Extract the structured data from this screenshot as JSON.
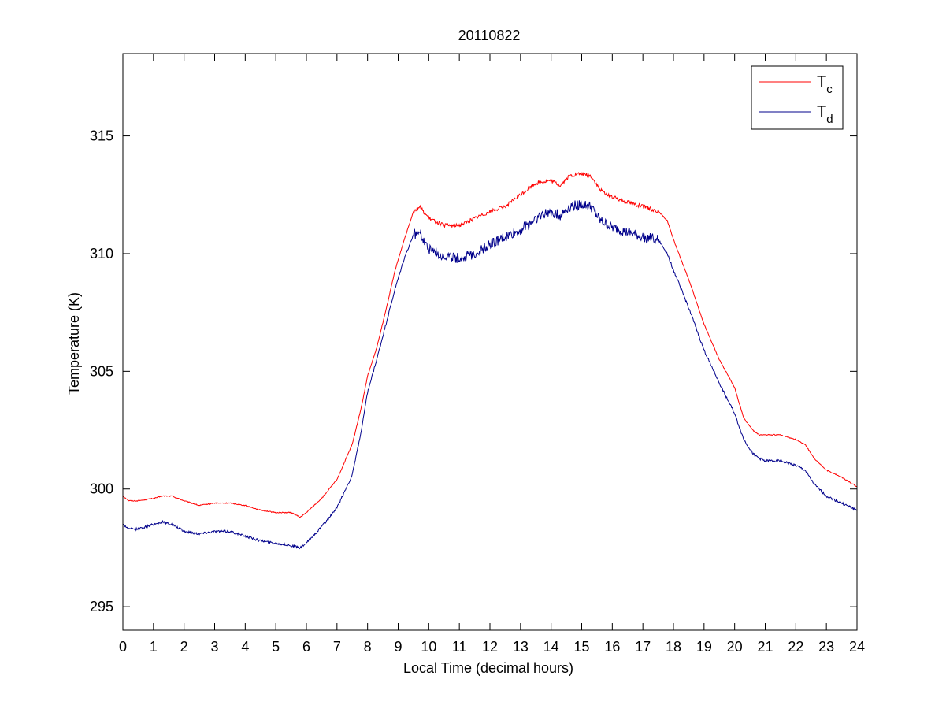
{
  "chart_data": {
    "type": "line",
    "title": "20110822",
    "xlabel": "Local Time (decimal hours)",
    "ylabel": "Temperature (K)",
    "xlim": [
      0,
      24
    ],
    "ylim": [
      294,
      318.5
    ],
    "xticks": [
      0,
      1,
      2,
      3,
      4,
      5,
      6,
      7,
      8,
      9,
      10,
      11,
      12,
      13,
      14,
      15,
      16,
      17,
      18,
      19,
      20,
      21,
      22,
      23,
      24
    ],
    "yticks": [
      295,
      300,
      305,
      310,
      315
    ],
    "grid": false,
    "legend_position": "top-right",
    "series": [
      {
        "name": "T",
        "subscript": "c",
        "color": "#ff0000",
        "x": [
          0,
          0.2,
          0.5,
          1.0,
          1.3,
          1.6,
          2.0,
          2.5,
          3.0,
          3.5,
          4.0,
          4.5,
          5.0,
          5.5,
          5.8,
          6.0,
          6.5,
          7.0,
          7.5,
          7.8,
          8.0,
          8.3,
          8.6,
          8.9,
          9.2,
          9.5,
          9.7,
          10.0,
          10.5,
          11.0,
          11.5,
          12.0,
          12.5,
          13.0,
          13.5,
          14.0,
          14.3,
          14.6,
          15.0,
          15.3,
          15.6,
          16.0,
          16.5,
          17.0,
          17.5,
          17.8,
          18.0,
          18.5,
          19.0,
          19.5,
          20.0,
          20.3,
          20.6,
          20.8,
          21.0,
          21.5,
          22.0,
          22.3,
          22.6,
          23.0,
          23.5,
          24.0
        ],
        "values": [
          299.7,
          299.5,
          299.5,
          299.6,
          299.7,
          299.7,
          299.5,
          299.3,
          299.4,
          299.4,
          299.3,
          299.1,
          299.0,
          299.0,
          298.8,
          299.0,
          299.6,
          300.4,
          301.9,
          303.5,
          304.8,
          306.0,
          307.6,
          309.3,
          310.6,
          311.8,
          312.0,
          311.5,
          311.2,
          311.2,
          311.5,
          311.8,
          312.0,
          312.5,
          313.0,
          313.1,
          312.9,
          313.3,
          313.4,
          313.3,
          312.7,
          312.4,
          312.2,
          312.0,
          311.8,
          311.4,
          310.6,
          308.9,
          307.0,
          305.5,
          304.3,
          303.0,
          302.5,
          302.3,
          302.3,
          302.3,
          302.1,
          301.9,
          301.3,
          300.8,
          300.5,
          300.1
        ]
      },
      {
        "name": "T",
        "subscript": "d",
        "color": "#00008b",
        "x": [
          0,
          0.2,
          0.5,
          1.0,
          1.3,
          1.6,
          2.0,
          2.5,
          3.0,
          3.5,
          4.0,
          4.5,
          5.0,
          5.5,
          5.8,
          6.0,
          6.5,
          7.0,
          7.5,
          7.8,
          8.0,
          8.3,
          8.6,
          8.9,
          9.2,
          9.5,
          9.7,
          10.0,
          10.5,
          11.0,
          11.5,
          12.0,
          12.5,
          13.0,
          13.5,
          14.0,
          14.3,
          14.6,
          15.0,
          15.3,
          15.6,
          16.0,
          16.5,
          17.0,
          17.5,
          17.8,
          18.0,
          18.5,
          19.0,
          19.5,
          20.0,
          20.3,
          20.6,
          20.8,
          21.0,
          21.5,
          22.0,
          22.3,
          22.6,
          23.0,
          23.5,
          24.0
        ],
        "values": [
          298.5,
          298.3,
          298.3,
          298.5,
          298.6,
          298.5,
          298.2,
          298.1,
          298.2,
          298.2,
          298.0,
          297.8,
          297.7,
          297.6,
          297.5,
          297.7,
          298.4,
          299.2,
          300.6,
          302.5,
          304.1,
          305.5,
          307.0,
          308.5,
          309.8,
          310.8,
          310.9,
          310.2,
          309.9,
          309.8,
          310.0,
          310.4,
          310.7,
          311.0,
          311.5,
          311.8,
          311.6,
          312.0,
          312.1,
          312.0,
          311.4,
          311.1,
          310.9,
          310.7,
          310.6,
          310.0,
          309.3,
          307.7,
          305.9,
          304.5,
          303.2,
          302.1,
          301.5,
          301.3,
          301.2,
          301.2,
          301.0,
          300.8,
          300.2,
          299.7,
          299.4,
          299.1
        ]
      }
    ]
  }
}
